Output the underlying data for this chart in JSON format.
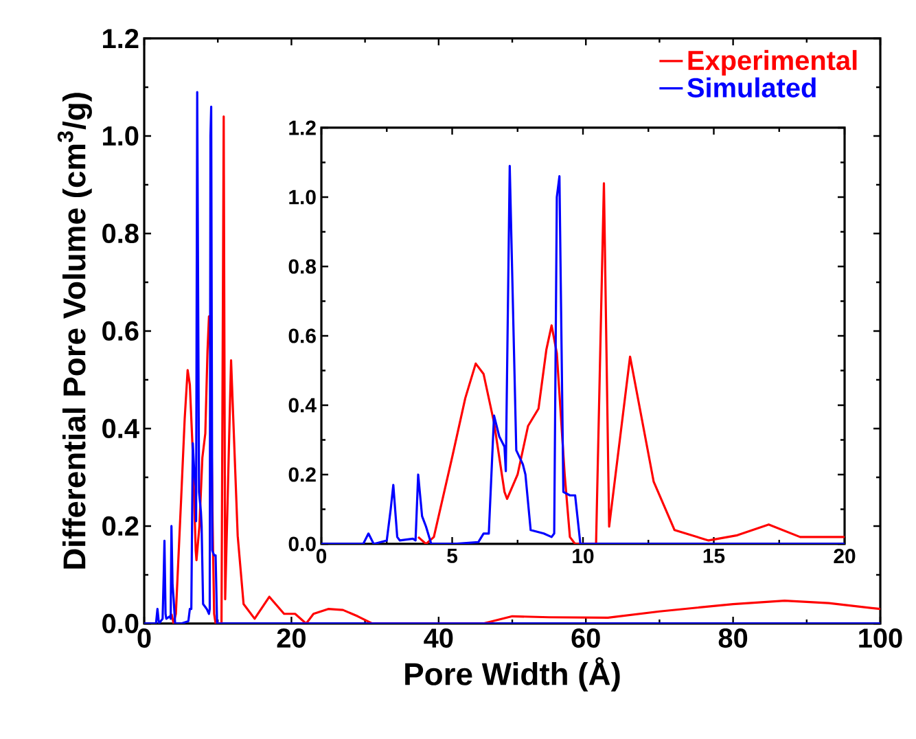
{
  "chart_data": [
    {
      "type": "line",
      "xlabel": "Pore Width (Å)",
      "ylabel": "Differential Pore Volume (cm$^{3}$/g)",
      "legend": "top right",
      "xlim": [
        0,
        100
      ],
      "ylim": [
        0,
        1.2
      ],
      "xticks": [
        0,
        20,
        40,
        60,
        80,
        100
      ],
      "yticks": [
        {
          "value": 0,
          "label": "0.0"
        },
        {
          "value": 0.2,
          "label": "0.2"
        },
        {
          "value": 0.4,
          "label": "0.4"
        },
        {
          "value": 0.6,
          "label": "0.6"
        },
        {
          "value": 0.8,
          "label": "0.8"
        },
        {
          "value": 1.0,
          "label": "1.0"
        },
        {
          "value": 1.2,
          "label": "1.2"
        }
      ],
      "series": [
        {
          "name": "Experimental",
          "color": "#ff0000",
          "x": [
            3.7,
            4.0,
            4.3,
            5.0,
            5.5,
            5.9,
            6.2,
            6.6,
            7.0,
            7.1,
            7.5,
            7.9,
            8.3,
            8.6,
            8.8,
            9.0,
            9.3,
            9.5,
            9.7,
            10.5,
            10.8,
            11.0,
            11.8,
            12.7,
            13.5,
            15.0,
            17.0,
            19.0,
            20.5,
            22.0,
            23.0,
            25.0,
            27.0,
            29.0,
            31.0,
            46.0,
            50.0,
            55.0,
            63.0,
            70.0,
            80.0,
            87.0,
            93.0,
            100.0
          ],
          "values": [
            0.02,
            0.0,
            0.02,
            0.25,
            0.42,
            0.52,
            0.49,
            0.35,
            0.15,
            0.13,
            0.2,
            0.34,
            0.39,
            0.56,
            0.63,
            0.55,
            0.2,
            0.02,
            0.0,
            0.0,
            1.04,
            0.05,
            0.54,
            0.18,
            0.04,
            0.01,
            0.055,
            0.02,
            0.02,
            0.0,
            0.02,
            0.03,
            0.028,
            0.015,
            0.0,
            0.0,
            0.015,
            0.013,
            0.012,
            0.025,
            0.04,
            0.047,
            0.042,
            0.03
          ]
        },
        {
          "name": "Simulated",
          "color": "#0000ff",
          "x": [
            0,
            1.6,
            1.8,
            2.0,
            2.5,
            2.65,
            2.75,
            2.9,
            3.0,
            3.5,
            3.6,
            3.7,
            3.85,
            4.0,
            4.2,
            5.0,
            6.0,
            6.2,
            6.4,
            6.6,
            6.8,
            7.0,
            7.05,
            7.2,
            7.45,
            7.7,
            7.8,
            8.0,
            8.5,
            8.8,
            8.9,
            9.0,
            9.1,
            9.25,
            9.5,
            9.7,
            9.9,
            20,
            100
          ],
          "values": [
            0,
            0,
            0.03,
            0,
            0.01,
            0.1,
            0.17,
            0.02,
            0.01,
            0.015,
            0.01,
            0.2,
            0.08,
            0.05,
            0,
            0,
            0.005,
            0.03,
            0.03,
            0.37,
            0.31,
            0.28,
            0.21,
            1.09,
            0.27,
            0.23,
            0.2,
            0.04,
            0.03,
            0.02,
            0.03,
            1.0,
            1.06,
            0.15,
            0.14,
            0.14,
            0,
            0,
            0
          ]
        }
      ]
    },
    {
      "type": "line",
      "xlim": [
        0,
        20
      ],
      "ylim": [
        0,
        1.2
      ],
      "xticks": [
        0,
        5,
        10,
        15,
        20
      ],
      "yticks": [
        {
          "value": 0,
          "label": "0.0"
        },
        {
          "value": 0.2,
          "label": "0.2"
        },
        {
          "value": 0.4,
          "label": "0.4"
        },
        {
          "value": 0.6,
          "label": "0.6"
        },
        {
          "value": 0.8,
          "label": "0.8"
        },
        {
          "value": 1.0,
          "label": "1.0"
        },
        {
          "value": 1.2,
          "label": "1.2"
        }
      ],
      "series": [
        {
          "color": "#ff0000",
          "x": [
            3.7,
            4.0,
            4.3,
            5.0,
            5.5,
            5.9,
            6.2,
            6.6,
            7.0,
            7.1,
            7.5,
            7.9,
            8.3,
            8.6,
            8.8,
            9.0,
            9.3,
            9.5,
            9.7,
            10.5,
            10.8,
            11.0,
            11.8,
            12.7,
            13.5,
            14.8,
            15.9,
            17.1,
            18.3,
            20
          ],
          "values": [
            0.02,
            0.0,
            0.02,
            0.25,
            0.42,
            0.52,
            0.49,
            0.35,
            0.15,
            0.13,
            0.2,
            0.34,
            0.39,
            0.56,
            0.63,
            0.55,
            0.2,
            0.02,
            0.0,
            0.0,
            1.04,
            0.05,
            0.54,
            0.18,
            0.04,
            0.01,
            0.025,
            0.056,
            0.02,
            0.02
          ]
        },
        {
          "color": "#0000ff",
          "x": [
            0,
            1.6,
            1.8,
            2.0,
            2.5,
            2.65,
            2.75,
            2.9,
            3.0,
            3.5,
            3.6,
            3.7,
            3.85,
            4.0,
            4.2,
            5.0,
            6.0,
            6.2,
            6.4,
            6.6,
            6.8,
            7.0,
            7.05,
            7.2,
            7.45,
            7.7,
            7.8,
            8.0,
            8.5,
            8.8,
            8.9,
            9.0,
            9.1,
            9.25,
            9.5,
            9.7,
            9.9,
            20
          ],
          "values": [
            0,
            0,
            0.03,
            0,
            0.01,
            0.1,
            0.17,
            0.02,
            0.01,
            0.015,
            0.01,
            0.2,
            0.08,
            0.05,
            0,
            0,
            0.005,
            0.03,
            0.03,
            0.37,
            0.31,
            0.28,
            0.21,
            1.09,
            0.27,
            0.23,
            0.2,
            0.04,
            0.03,
            0.02,
            0.03,
            1.0,
            1.06,
            0.15,
            0.14,
            0.14,
            0,
            0
          ]
        }
      ]
    }
  ]
}
